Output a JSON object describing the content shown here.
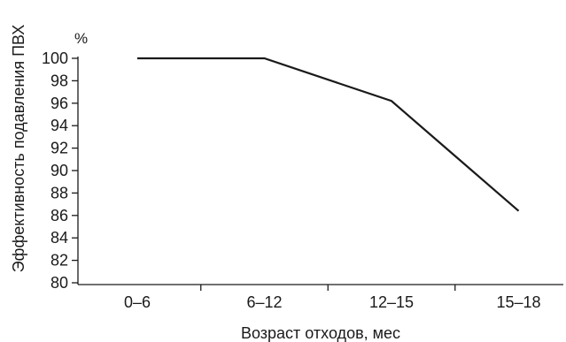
{
  "chart_data": {
    "type": "line",
    "categories": [
      "0–6",
      "6–12",
      "12–15",
      "15–18"
    ],
    "series": [
      {
        "values": [
          100,
          100,
          96.2,
          86.4
        ]
      }
    ],
    "xlabel": "Возраст отходов, мес",
    "ylabel": "Эффективность подавления ПВХ",
    "y_unit": "%",
    "ylim": [
      80,
      100
    ],
    "y_ticks": [
      80,
      82,
      84,
      86,
      88,
      90,
      92,
      94,
      96,
      98,
      100
    ],
    "grid": false,
    "colors": {
      "line": "#1a1a1a",
      "axis": "#1a1a1a",
      "background": "#ffffff"
    }
  }
}
